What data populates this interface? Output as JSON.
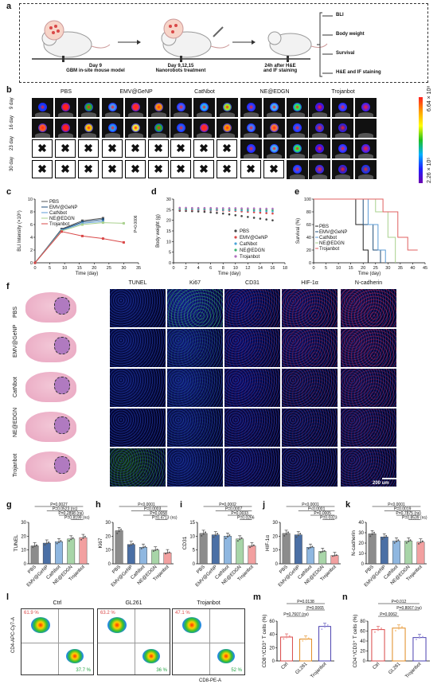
{
  "panels": {
    "a": {
      "letter": "a",
      "steps": [
        {
          "day": "Day 9",
          "desc": "GBM in-site mouse model"
        },
        {
          "day": "Day 9,12,15",
          "desc": "Nanorobots treatment"
        },
        {
          "day": "24h after H&E",
          "desc": "and IF staining"
        }
      ],
      "outcomes": [
        "BLI",
        "Body weight",
        "Survival",
        "H&E and IF staining"
      ]
    },
    "b": {
      "letter": "b",
      "groups": [
        "PBS",
        "EMV@GeNP",
        "CatNbot",
        "NE@EDGN",
        "Trojanbot"
      ],
      "rows": [
        "9 day",
        "16 day",
        "23 day",
        "30 day"
      ],
      "cbar_top": "6.64 × 10⁸",
      "cbar_bottom": "2.26 × 10⁵",
      "x_mark": "✖"
    },
    "c": {
      "letter": "c"
    },
    "d": {
      "letter": "d"
    },
    "e": {
      "letter": "e"
    },
    "f": {
      "letter": "f",
      "stains": [
        "TUNEL",
        "Ki67",
        "CD31",
        "HIF-1α",
        "N-cadherin"
      ],
      "groups": [
        "PBS",
        "EMV@GeNP",
        "CatNbot",
        "NE@EDGN",
        "Trojanbot"
      ],
      "scale": "200 um"
    },
    "g": {
      "letter": "g"
    },
    "h": {
      "letter": "h"
    },
    "i": {
      "letter": "i"
    },
    "j": {
      "letter": "j"
    },
    "k": {
      "letter": "k"
    },
    "l": {
      "letter": "l",
      "titles": [
        "Ctrl",
        "GL261",
        "Trojanbot"
      ],
      "top_pct": [
        "61.9 %",
        "63.2 %",
        "47.1 %"
      ],
      "bot_pct": [
        "37.7 %",
        "36 %",
        "52 %"
      ],
      "ylabel": "CD4-APC-Cy7-A",
      "xlabel": "CD8-PE-A"
    },
    "m": {
      "letter": "m"
    },
    "n": {
      "letter": "n"
    }
  },
  "chart_data": [
    {
      "id": "c",
      "type": "line",
      "ylabel": "BLI Intensity (×10⁸)",
      "xlabel": "Time (day)",
      "xlim": [
        0,
        35
      ],
      "ylim": [
        0,
        10
      ],
      "xticks": [
        0,
        5,
        10,
        15,
        20,
        25,
        30,
        35
      ],
      "yticks": [
        0,
        2,
        4,
        6,
        8,
        10
      ],
      "annotation": "P=0.0006",
      "series": [
        {
          "name": "PBS",
          "color": "#555555",
          "x": [
            0,
            9,
            16,
            23
          ],
          "y": [
            0,
            5.3,
            6.6,
            7.0
          ]
        },
        {
          "name": "EMV@GeNP",
          "color": "#1f4e79",
          "x": [
            0,
            9,
            16,
            23
          ],
          "y": [
            0,
            5.2,
            6.4,
            6.8
          ]
        },
        {
          "name": "CatNbot",
          "color": "#5b9bd5",
          "x": [
            0,
            9,
            16,
            23
          ],
          "y": [
            0,
            5.1,
            6.2,
            6.5
          ]
        },
        {
          "name": "NE@EDGN",
          "color": "#a9d18e",
          "x": [
            0,
            9,
            16,
            23,
            30
          ],
          "y": [
            0,
            5.0,
            6.0,
            6.3,
            6.2
          ]
        },
        {
          "name": "Trojanbot",
          "color": "#d94848",
          "x": [
            0,
            9,
            16,
            23,
            30
          ],
          "y": [
            0,
            4.9,
            4.2,
            3.8,
            3.2
          ]
        }
      ]
    },
    {
      "id": "d",
      "type": "scatter",
      "ylabel": "Body weight (g)",
      "xlabel": "Time (day)",
      "xlim": [
        0,
        18
      ],
      "ylim": [
        0,
        30
      ],
      "xticks": [
        0,
        2,
        4,
        6,
        8,
        10,
        12,
        14,
        16,
        18
      ],
      "yticks": [
        0,
        5,
        10,
        15,
        20,
        25,
        30
      ],
      "series": [
        {
          "name": "PBS",
          "color": "#444444",
          "x": [
            1,
            2,
            3,
            4,
            5,
            6,
            7,
            8,
            9,
            10,
            11,
            12,
            13,
            14,
            15,
            16
          ],
          "y": [
            24.5,
            24.4,
            24.3,
            24.2,
            24,
            23.8,
            23.5,
            23.2,
            22.8,
            22.4,
            22,
            21.6,
            21.2,
            20.8,
            20.4,
            20
          ]
        },
        {
          "name": "EMV@GeNP",
          "color": "#d94848",
          "x": [
            1,
            2,
            3,
            4,
            5,
            6,
            7,
            8,
            9,
            10,
            11,
            12,
            13,
            14,
            15,
            16
          ],
          "y": [
            25,
            25,
            24.9,
            24.9,
            24.8,
            24.8,
            24.7,
            24.6,
            24.5,
            24.4,
            24.2,
            24,
            23.8,
            23.6,
            23.4,
            23.2
          ]
        },
        {
          "name": "CatNbot",
          "color": "#4aa3d8",
          "x": [
            1,
            2,
            3,
            4,
            5,
            6,
            7,
            8,
            9,
            10,
            11,
            12,
            13,
            14,
            15,
            16
          ],
          "y": [
            25.3,
            25.2,
            25.2,
            25.1,
            25.1,
            25,
            25,
            24.9,
            24.9,
            24.8,
            24.7,
            24.6,
            24.5,
            24.4,
            24.3,
            24.2
          ]
        },
        {
          "name": "NE@EDGN",
          "color": "#3cb371",
          "x": [
            1,
            2,
            3,
            4,
            5,
            6,
            7,
            8,
            9,
            10,
            11,
            12,
            13,
            14,
            15,
            16
          ],
          "y": [
            25.6,
            25.5,
            25.5,
            25.5,
            25.4,
            25.4,
            25.4,
            25.3,
            25.3,
            25.2,
            25.2,
            25.1,
            25,
            25,
            24.9,
            24.8
          ]
        },
        {
          "name": "Trojanbot",
          "color": "#b070c0",
          "x": [
            1,
            2,
            3,
            4,
            5,
            6,
            7,
            8,
            9,
            10,
            11,
            12,
            13,
            14,
            15,
            16
          ],
          "y": [
            25.9,
            25.9,
            25.8,
            25.8,
            25.8,
            25.8,
            25.7,
            25.7,
            25.7,
            25.7,
            25.6,
            25.6,
            25.6,
            25.5,
            25.5,
            25.5
          ]
        }
      ]
    },
    {
      "id": "e",
      "type": "line",
      "ylabel": "Survival (%)",
      "xlabel": "Time (day)",
      "xlim": [
        0,
        45
      ],
      "ylim": [
        0,
        100
      ],
      "xticks": [
        0,
        5,
        10,
        15,
        20,
        25,
        30,
        35,
        40,
        45
      ],
      "yticks": [
        0,
        20,
        40,
        60,
        80,
        100
      ],
      "series": [
        {
          "name": "PBS",
          "color": "#222222",
          "x": [
            0,
            17,
            17,
            20,
            20,
            22,
            22
          ],
          "y": [
            100,
            100,
            60,
            60,
            20,
            20,
            0
          ]
        },
        {
          "name": "EMV@GeNP",
          "color": "#1f4e79",
          "x": [
            0,
            20,
            20,
            24,
            24,
            27,
            27
          ],
          "y": [
            100,
            100,
            60,
            60,
            20,
            20,
            0
          ]
        },
        {
          "name": "CatNbot",
          "color": "#5b9bd5",
          "x": [
            0,
            22,
            22,
            26,
            26,
            29,
            29
          ],
          "y": [
            100,
            100,
            60,
            60,
            20,
            20,
            0
          ]
        },
        {
          "name": "NE@EDGN",
          "color": "#a9d18e",
          "x": [
            0,
            25,
            25,
            30,
            30,
            33,
            33
          ],
          "y": [
            100,
            100,
            80,
            80,
            40,
            40,
            0
          ]
        },
        {
          "name": "Trojanbot",
          "color": "#e06060",
          "x": [
            0,
            28,
            28,
            34,
            34,
            38,
            38,
            42
          ],
          "y": [
            100,
            100,
            80,
            80,
            40,
            40,
            20,
            20
          ]
        }
      ]
    },
    {
      "id": "g",
      "type": "bar",
      "ylabel": "TUNEL",
      "ylim": [
        0,
        30
      ],
      "yticks": [
        0,
        10,
        20,
        30
      ],
      "categories": [
        "PBS",
        "EMV@GeNP",
        "CatNbot",
        "NE@EDGN",
        "Trojanbot"
      ],
      "values": [
        13,
        15,
        16,
        18,
        19
      ],
      "colors": [
        "#8c8c8c",
        "#4a6fa5",
        "#8fb7e0",
        "#a8d5a8",
        "#f2a0a0"
      ],
      "pvals": [
        "P=0.0027",
        "P=0.0523 (ns)",
        "P=0.2898 (ns)",
        "P=0.8199 (ns)"
      ]
    },
    {
      "id": "h",
      "type": "bar",
      "ylabel": "Ki67",
      "ylim": [
        0,
        30
      ],
      "yticks": [
        0,
        10,
        20,
        30
      ],
      "categories": [
        "PBS",
        "EMV@GeNP",
        "CatNbot",
        "NE@EDGN",
        "Trojanbot"
      ],
      "values": [
        24,
        14,
        12,
        10,
        8
      ],
      "colors": [
        "#8c8c8c",
        "#4a6fa5",
        "#8fb7e0",
        "#a8d5a8",
        "#f2a0a0"
      ],
      "pvals": [
        "P<0.0001",
        "P=0.0003",
        "P=0.0058",
        "P=0.4713 (ns)"
      ]
    },
    {
      "id": "i",
      "type": "bar",
      "ylabel": "CD31",
      "ylim": [
        0,
        15
      ],
      "yticks": [
        0,
        5,
        10,
        15
      ],
      "categories": [
        "PBS",
        "EMV@GeNP",
        "CatNbot",
        "NE@EDGN",
        "Trojanbot"
      ],
      "values": [
        11,
        10.5,
        10,
        9,
        6.5
      ],
      "colors": [
        "#8c8c8c",
        "#4a6fa5",
        "#8fb7e0",
        "#a8d5a8",
        "#f2a0a0"
      ],
      "pvals": [
        "P=0.0002",
        "P=0.0007",
        "P=0.0033",
        "P=0.0266"
      ]
    },
    {
      "id": "j",
      "type": "bar",
      "ylabel": "HIF-1α",
      "ylim": [
        0,
        30
      ],
      "yticks": [
        0,
        10,
        20,
        30
      ],
      "categories": [
        "PBS",
        "EMV@GeNP",
        "CatNbot",
        "NE@EDGN",
        "Trojanbot"
      ],
      "values": [
        22,
        21,
        12,
        9,
        6
      ],
      "colors": [
        "#8c8c8c",
        "#4a6fa5",
        "#8fb7e0",
        "#a8d5a8",
        "#f2a0a0"
      ],
      "pvals": [
        "P<0.0001",
        "P<0.0001",
        "P=0.0005",
        "P=0.0323"
      ]
    },
    {
      "id": "k",
      "type": "bar",
      "ylabel": "N-cadherin",
      "ylim": [
        0,
        40
      ],
      "yticks": [
        0,
        10,
        20,
        30,
        40
      ],
      "categories": [
        "PBS",
        "EMV@GeNP",
        "CatNbot",
        "NE@EDGN",
        "Trojanbot"
      ],
      "values": [
        29,
        26,
        22,
        22,
        21
      ],
      "colors": [
        "#8c8c8c",
        "#4a6fa5",
        "#8fb7e0",
        "#a8d5a8",
        "#f2a0a0"
      ],
      "pvals": [
        "P<0.0001",
        "P=0.0019",
        "P=0.7875 (ns)",
        "P=0.8539 (ns)"
      ]
    },
    {
      "id": "m",
      "type": "bar",
      "ylabel": "CD8⁺/CD3⁺ T cells (%)",
      "ylim": [
        0,
        60
      ],
      "yticks": [
        0,
        20,
        40,
        60
      ],
      "categories": [
        "Ctrl",
        "GL261",
        "Trojanbot"
      ],
      "values": [
        36,
        33,
        52
      ],
      "colors": [
        "#f2a0a0",
        "#f9c98a",
        "#b9b0e8"
      ],
      "edges": [
        "#d94848",
        "#e08a20",
        "#4a40b0"
      ],
      "pvals": [
        "P=0.0138",
        "P=0.0065",
        "P=0.7607 (ns)"
      ]
    },
    {
      "id": "n",
      "type": "bar",
      "ylabel": "CD4⁺/CD3⁺ T cells (%)",
      "ylim": [
        0,
        80
      ],
      "yticks": [
        0,
        20,
        40,
        60,
        80
      ],
      "categories": [
        "Ctrl",
        "GL261",
        "Trojanbot"
      ],
      "values": [
        63,
        66,
        47
      ],
      "colors": [
        "#f2a0a0",
        "#f9c98a",
        "#b9b0e8"
      ],
      "edges": [
        "#d94848",
        "#e08a20",
        "#4a40b0"
      ],
      "pvals": [
        "P=0.012",
        "P=0.8067 (ns)",
        "P=0.0062"
      ]
    }
  ]
}
